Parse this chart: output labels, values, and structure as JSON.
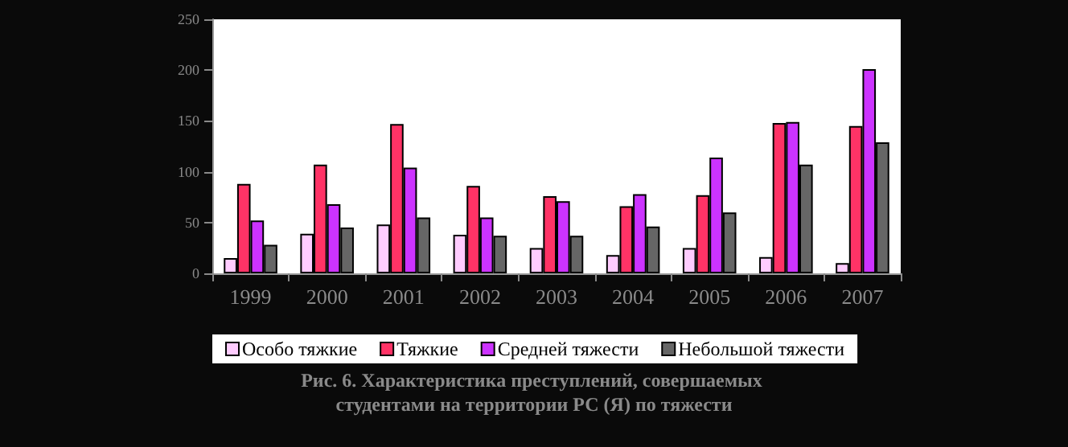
{
  "chart_data": {
    "type": "bar",
    "categories": [
      "1999",
      "2000",
      "2001",
      "2002",
      "2003",
      "2004",
      "2005",
      "2006",
      "2007"
    ],
    "series": [
      {
        "name": "Особо тяжкие",
        "color": "#ffccff",
        "values": [
          15,
          39,
          48,
          38,
          25,
          18,
          25,
          16,
          10
        ]
      },
      {
        "name": "Тяжкие",
        "color": "#ff3366",
        "values": [
          88,
          107,
          147,
          86,
          76,
          66,
          77,
          148,
          145
        ]
      },
      {
        "name": "Средней тяжести",
        "color": "#cc33ff",
        "values": [
          52,
          68,
          104,
          55,
          71,
          78,
          114,
          149,
          201
        ]
      },
      {
        "name": "Небольшой тяжести",
        "color": "#666666",
        "values": [
          28,
          45,
          55,
          37,
          37,
          46,
          60,
          107,
          129
        ]
      }
    ],
    "ylim": [
      0,
      250
    ],
    "yticks": [
      0,
      50,
      100,
      150,
      200,
      250
    ],
    "grid": false,
    "legend": "bottom",
    "annotations": [
      "Рис. 6. Характеристика преступлений, совершаемых студентами на территории РС (Я) по тяжести"
    ]
  }
}
